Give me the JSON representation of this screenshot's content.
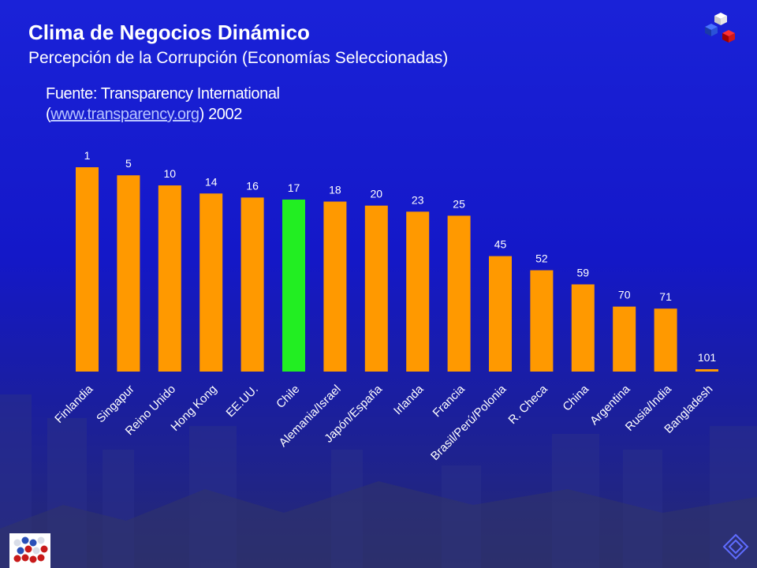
{
  "header": {
    "title": "Clima de Negocios Dinámico",
    "subtitle": "Percepción de la Corrupción (Economías Seleccionadas)"
  },
  "source": {
    "prefix": "Fuente:  Transparency International",
    "open_paren": "(",
    "url": "www.transparency.org",
    "suffix": ")  2002"
  },
  "colors": {
    "bar": "#ff9900",
    "highlight": "#22ee22",
    "background": "#1418c8"
  },
  "icons": {
    "corner_logo": "cubes-logo-icon",
    "bottom_logo": "chile-flag-spheres-logo-icon",
    "nav": "diamond-nav-icon"
  },
  "chart_data": {
    "type": "bar",
    "title": "",
    "xlabel": "",
    "ylabel": "",
    "inverted": true,
    "categories": [
      "Finlandia",
      "Singapur",
      "Reino Unido",
      "Hong Kong",
      "EE.UU.",
      "Chile",
      "Alemania/Israel",
      "Japón/España",
      "Irlanda",
      "Francia",
      "Brasil/Perú/Polonia",
      "R. Checa",
      "China",
      "Argentina",
      "Rusia/India",
      "Bangladesh"
    ],
    "values": [
      1,
      5,
      10,
      14,
      16,
      17,
      18,
      20,
      23,
      25,
      45,
      52,
      59,
      70,
      71,
      101
    ],
    "highlight": "Chile",
    "ylim": [
      0,
      101
    ],
    "grid": false
  }
}
